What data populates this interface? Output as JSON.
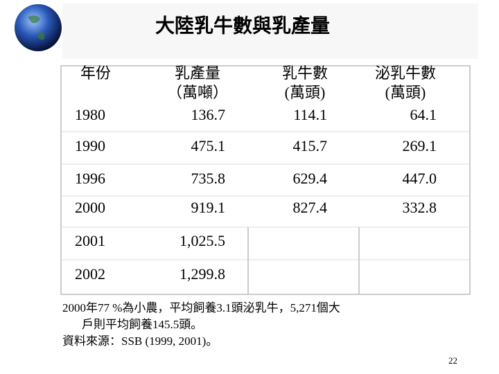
{
  "title": "大陸乳牛數與乳產量",
  "table": {
    "header": [
      [
        "年份"
      ],
      [
        "乳產量",
        "（萬噸）"
      ],
      [
        "乳牛數",
        "(萬頭)"
      ],
      [
        "泌乳牛數",
        "(萬頭)"
      ]
    ],
    "rows": [
      [
        "1980",
        "136.7",
        "114.1",
        "64.1"
      ],
      [
        "1990",
        "475.1",
        "415.7",
        "269.1"
      ],
      [
        "1996",
        "735.8",
        "629.4",
        "447.0"
      ],
      [
        "2000",
        "919.1",
        "827.4",
        "332.8"
      ],
      [
        "2001",
        "1,025.5"
      ],
      [
        "2002",
        "1,299.8"
      ]
    ]
  },
  "notes": [
    "2000年77 %為小農，平均飼養3.1頭泌乳牛，5,271個大",
    "戶則平均飼養145.5頭。",
    "資料來源：SSB (1999, 2001)。"
  ],
  "page_number": "22"
}
